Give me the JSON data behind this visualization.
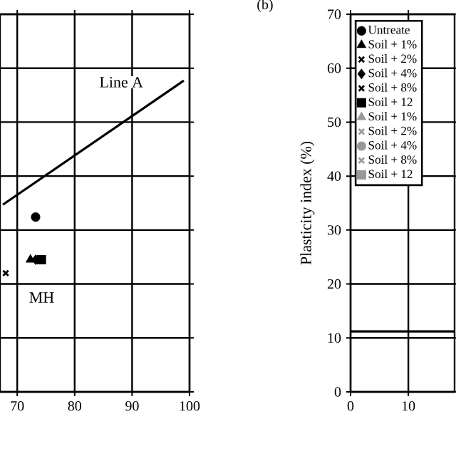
{
  "chart_data": [
    {
      "type": "scatter",
      "xlim": [
        67,
        100
      ],
      "xticks": [
        70,
        80,
        90,
        100
      ],
      "ylim": [
        0,
        70
      ],
      "yticks": [
        0,
        10,
        20,
        30,
        40,
        50,
        60,
        70
      ],
      "tick_labels": "x",
      "grid": true,
      "annotations": [
        "Line A",
        "MH"
      ],
      "series": [
        {
          "type": "line",
          "color": "#000000",
          "marker": "none",
          "x": [
            67.5,
            99
          ],
          "values": [
            34.7,
            57.7
          ]
        },
        {
          "color": "#000000",
          "marker": "circle",
          "x": [
            73.2
          ],
          "values": [
            32.4
          ]
        },
        {
          "color": "#000000",
          "marker": "triangle",
          "x": [
            72.3
          ],
          "values": [
            24.5
          ]
        },
        {
          "color": "#000000",
          "marker": "diamond",
          "x": [
            73.2
          ],
          "values": [
            24.5
          ]
        },
        {
          "color": "#000000",
          "marker": "square",
          "x": [
            74.2
          ],
          "values": [
            24.5
          ]
        },
        {
          "color": "#000000",
          "marker": "cross",
          "x": [
            68
          ],
          "values": [
            22
          ]
        }
      ]
    },
    {
      "type": "scatter",
      "title": "(b)",
      "ylabel": "Plasticity index (%)",
      "xlim": [
        0,
        18
      ],
      "xticks": [
        0,
        10
      ],
      "ylim": [
        0,
        70
      ],
      "yticks": [
        0,
        10,
        20,
        30,
        40,
        50,
        60,
        70
      ],
      "grid": true,
      "legend": "top left",
      "series": [
        {
          "name": "Untreate",
          "color": "#000000",
          "marker": "circle"
        },
        {
          "name": "Soil + 1%",
          "color": "#000000",
          "marker": "triangle"
        },
        {
          "name": "Soil + 2%",
          "color": "#000000",
          "marker": "cross"
        },
        {
          "name": "Soil + 4%",
          "color": "#000000",
          "marker": "diamond"
        },
        {
          "name": "Soil + 8%",
          "color": "#000000",
          "marker": "cross"
        },
        {
          "name": "Soil + 12",
          "color": "#000000",
          "marker": "square"
        },
        {
          "name": "Soil + 1%",
          "color": "#999999",
          "marker": "triangle"
        },
        {
          "name": "Soil + 2%",
          "color": "#999999",
          "marker": "cross"
        },
        {
          "name": "Soil + 4%",
          "color": "#999999",
          "marker": "circle"
        },
        {
          "name": "Soil + 8%",
          "color": "#999999",
          "marker": "cross"
        },
        {
          "name": "Soil + 12",
          "color": "#999999",
          "marker": "square"
        },
        {
          "type": "line",
          "color": "#000000",
          "marker": "none",
          "x": [
            0,
            18
          ],
          "values": [
            11.2,
            11.2
          ]
        }
      ]
    }
  ]
}
